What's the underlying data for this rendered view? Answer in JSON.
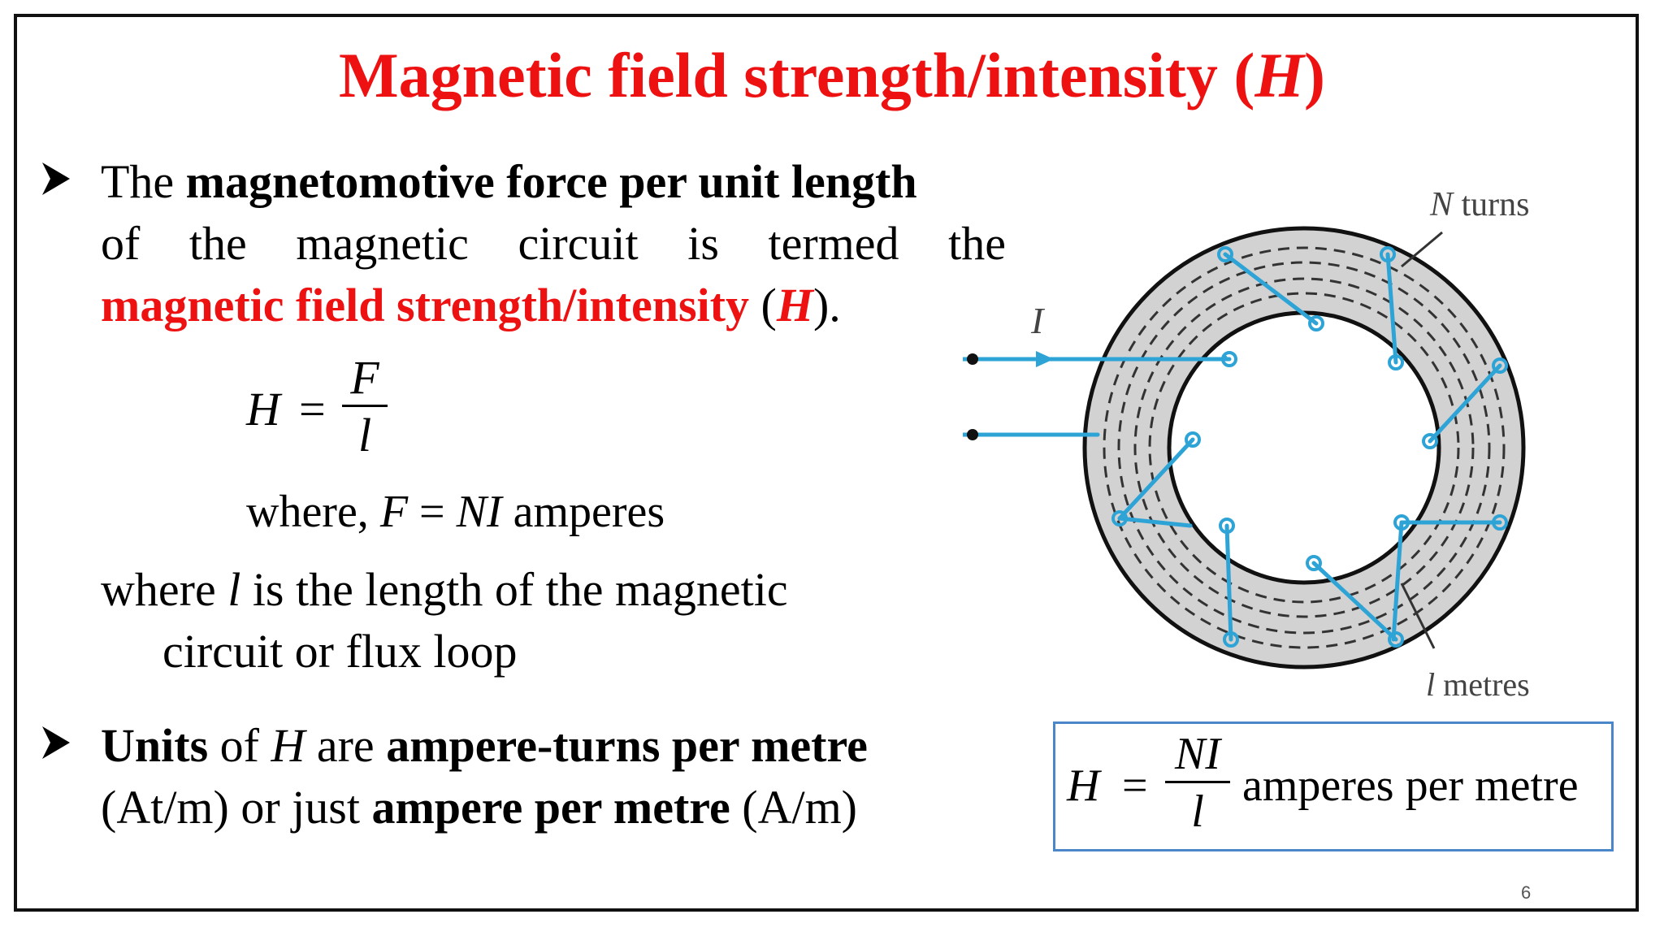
{
  "slide": {
    "title_main": "Magnetic field strength/intensity (",
    "title_symbol": "H",
    "title_close": ")",
    "page_number": "6"
  },
  "bullet1": {
    "t1": "The ",
    "t2": "magnetomotive force per unit length",
    "line2_words": [
      "of",
      "the",
      "magnetic",
      "circuit",
      "is",
      "termed",
      "the"
    ],
    "t3": "magnetic field strength/intensity",
    "t4": " (",
    "t5": "H",
    "t6": ")."
  },
  "equation1": {
    "lhs": "H",
    "equals": "=",
    "numerator": "F",
    "denominator": "l"
  },
  "where1": {
    "w1": "where, ",
    "w2": "F",
    "w3": " = ",
    "w4": "NI",
    "w5": " amperes"
  },
  "where2": {
    "w1": "where ",
    "w2": "l",
    "w3": " is the length of the magnetic",
    "w4": "circuit or flux loop"
  },
  "bullet2": {
    "u1": "Units",
    "u2": " of ",
    "u3": "H",
    "u4": " are ",
    "u5": "ampere-turns per metre",
    "u6": "(At/m) or just ",
    "u7": "ampere per metre",
    "u8": " (A/m)"
  },
  "figure": {
    "label_turns_n": "N",
    "label_turns": " turns",
    "label_current": "I",
    "label_length_l": "l",
    "label_length": " metres",
    "wire_color": "#2ea3d6",
    "core_color": "#d2d2d2"
  },
  "formula_box": {
    "lhs": "H",
    "equals": "=",
    "numerator": "NI",
    "denominator": "l",
    "unit": "amperes per metre",
    "border_color": "#4a86c8"
  }
}
